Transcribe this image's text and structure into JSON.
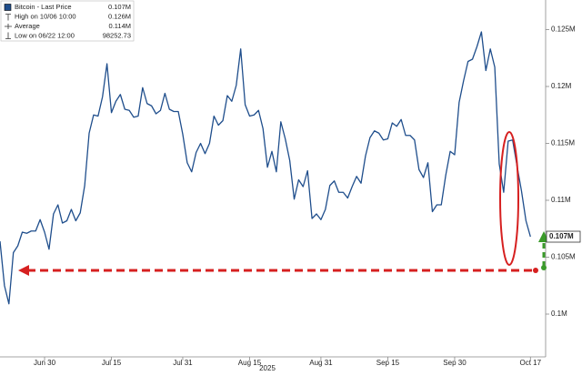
{
  "chart_data": {
    "type": "line",
    "legend": [
      {
        "text": "Bitcoin - Last Price",
        "value": "0.107M"
      },
      {
        "text": "High on 10/06 10:00",
        "value": "0.126M"
      },
      {
        "text": "Average",
        "value": "0.114M"
      },
      {
        "text": "Low on 06/22 12:00",
        "value": "98252.73"
      }
    ],
    "year_label": "2025",
    "last_label": "0.107M",
    "x": [
      "2025-06-20",
      "2025-06-21",
      "2025-06-22",
      "2025-06-23",
      "2025-06-24",
      "2025-06-25",
      "2025-06-26",
      "2025-06-27",
      "2025-06-28",
      "2025-06-29",
      "2025-06-30",
      "2025-07-01",
      "2025-07-02",
      "2025-07-03",
      "2025-07-04",
      "2025-07-05",
      "2025-07-06",
      "2025-07-07",
      "2025-07-08",
      "2025-07-09",
      "2025-07-10",
      "2025-07-11",
      "2025-07-12",
      "2025-07-13",
      "2025-07-14",
      "2025-07-15",
      "2025-07-16",
      "2025-07-17",
      "2025-07-18",
      "2025-07-19",
      "2025-07-20",
      "2025-07-21",
      "2025-07-22",
      "2025-07-23",
      "2025-07-24",
      "2025-07-25",
      "2025-07-26",
      "2025-07-27",
      "2025-07-28",
      "2025-07-29",
      "2025-07-30",
      "2025-07-31",
      "2025-08-01",
      "2025-08-02",
      "2025-08-03",
      "2025-08-04",
      "2025-08-05",
      "2025-08-06",
      "2025-08-07",
      "2025-08-08",
      "2025-08-09",
      "2025-08-10",
      "2025-08-11",
      "2025-08-12",
      "2025-08-13",
      "2025-08-14",
      "2025-08-15",
      "2025-08-16",
      "2025-08-17",
      "2025-08-18",
      "2025-08-19",
      "2025-08-20",
      "2025-08-21",
      "2025-08-22",
      "2025-08-23",
      "2025-08-24",
      "2025-08-25",
      "2025-08-26",
      "2025-08-27",
      "2025-08-28",
      "2025-08-29",
      "2025-08-30",
      "2025-08-31",
      "2025-09-01",
      "2025-09-02",
      "2025-09-03",
      "2025-09-04",
      "2025-09-05",
      "2025-09-06",
      "2025-09-07",
      "2025-09-08",
      "2025-09-09",
      "2025-09-10",
      "2025-09-11",
      "2025-09-12",
      "2025-09-13",
      "2025-09-14",
      "2025-09-15",
      "2025-09-16",
      "2025-09-17",
      "2025-09-18",
      "2025-09-19",
      "2025-09-20",
      "2025-09-21",
      "2025-09-22",
      "2025-09-23",
      "2025-09-24",
      "2025-09-25",
      "2025-09-26",
      "2025-09-27",
      "2025-09-28",
      "2025-09-29",
      "2025-09-30",
      "2025-10-01",
      "2025-10-02",
      "2025-10-03",
      "2025-10-04",
      "2025-10-05",
      "2025-10-06",
      "2025-10-07",
      "2025-10-08",
      "2025-10-09",
      "2025-10-10",
      "2025-10-11",
      "2025-10-12",
      "2025-10-13",
      "2025-10-14",
      "2025-10-15",
      "2025-10-16",
      "2025-10-17"
    ],
    "series": [
      {
        "name": "Bitcoin - Last Price",
        "color": "#1f4e8c",
        "values": [
          106400,
          102500,
          100900,
          105400,
          106000,
          107200,
          107100,
          107300,
          107300,
          108300,
          107200,
          105700,
          108800,
          109600,
          108000,
          108200,
          109200,
          108200,
          108900,
          111300,
          115900,
          117500,
          117400,
          119100,
          122000,
          117700,
          118700,
          119300,
          118000,
          117900,
          117300,
          117400,
          119900,
          118500,
          118300,
          117600,
          117900,
          119400,
          118000,
          117800,
          117800,
          115800,
          113300,
          112500,
          114200,
          115000,
          114100,
          115000,
          117400,
          116600,
          117000,
          119200,
          118700,
          120100,
          123300,
          118400,
          117400,
          117500,
          117900,
          116300,
          112900,
          114300,
          112500,
          116900,
          115400,
          113500,
          110100,
          111800,
          111200,
          112600,
          108400,
          108800,
          108300,
          109200,
          111300,
          111700,
          110700,
          110700,
          110200,
          111200,
          112100,
          111500,
          113900,
          115500,
          116100,
          115900,
          115300,
          115400,
          116800,
          116500,
          117100,
          115700,
          115700,
          115300,
          112700,
          112000,
          113300,
          109000,
          109600,
          109600,
          112200,
          114300,
          114000,
          118600,
          120500,
          122200,
          122400,
          123500,
          124800,
          121400,
          123300,
          121700,
          113200,
          110700,
          115200,
          115300,
          113000,
          110800,
          108200,
          106800
        ]
      }
    ],
    "xlim": [
      "2025-06-20",
      "2025-10-20"
    ],
    "xticks": [
      {
        "value": "2025-06-30",
        "label": "Jun 30"
      },
      {
        "value": "2025-07-15",
        "label": "Jul 15"
      },
      {
        "value": "2025-07-31",
        "label": "Jul 31"
      },
      {
        "value": "2025-08-15",
        "label": "Aug 15"
      },
      {
        "value": "2025-08-31",
        "label": "Aug 31"
      },
      {
        "value": "2025-09-15",
        "label": "Sep 15"
      },
      {
        "value": "2025-09-30",
        "label": "Sep 30"
      },
      {
        "value": "2025-10-17",
        "label": "Oct 17"
      }
    ],
    "ylim": [
      96400,
      127600
    ],
    "yticks": [
      {
        "value": 100000,
        "label": "0.1M"
      },
      {
        "value": 105000,
        "label": "0.105M"
      },
      {
        "value": 110000,
        "label": "0.11M"
      },
      {
        "value": 115000,
        "label": "0.115M"
      },
      {
        "value": 120000,
        "label": "0.12M"
      },
      {
        "value": 125000,
        "label": "0.125M"
      }
    ],
    "grid": false
  }
}
